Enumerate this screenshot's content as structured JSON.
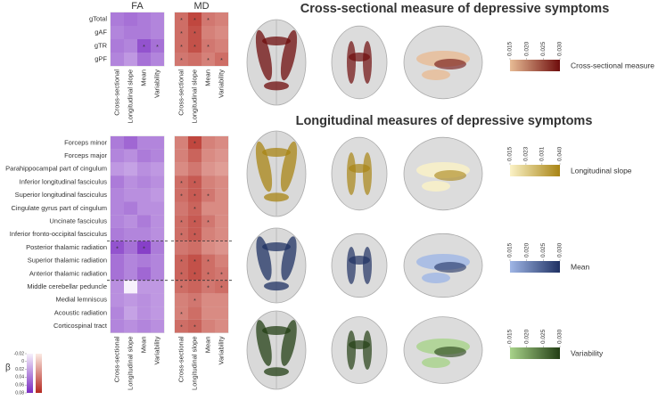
{
  "chart_data": [
    {
      "type": "heatmap",
      "title": "FA",
      "rows": [
        "gTotal",
        "gAF",
        "gTR",
        "gPF"
      ],
      "columns": [
        "Cross-sectional",
        "Longitudinal slope",
        "Mean",
        "Variability"
      ],
      "colors": [
        "#f7f1fc",
        "#7a2cc2"
      ],
      "values": [
        [
          0.04,
          0.045,
          0.04,
          0.035
        ],
        [
          0.035,
          0.04,
          0.04,
          0.035
        ],
        [
          0.04,
          0.035,
          0.06,
          0.045
        ],
        [
          0.035,
          0.025,
          0.045,
          0.035
        ]
      ],
      "stars": [
        [
          null,
          null,
          null,
          null
        ],
        [
          null,
          null,
          null,
          null
        ],
        [
          null,
          null,
          "*",
          "*"
        ],
        [
          null,
          null,
          null,
          null
        ]
      ]
    },
    {
      "type": "heatmap",
      "title": "MD",
      "columns": [
        "Cross-sectional",
        "Longitudinal slope",
        "Mean",
        "Variability"
      ],
      "colors": [
        "#fcebe4",
        "#b52a22"
      ],
      "values": [
        [
          0.045,
          0.065,
          0.04,
          0.035
        ],
        [
          0.045,
          0.06,
          0.035,
          0.03
        ],
        [
          0.045,
          0.06,
          0.04,
          0.035
        ],
        [
          0.04,
          0.045,
          0.035,
          0.045
        ]
      ],
      "stars": [
        [
          "*",
          "*",
          "*",
          null
        ],
        [
          "*",
          "*",
          null,
          null
        ],
        [
          "*",
          "*",
          "*",
          null
        ],
        [
          "*",
          null,
          "*",
          "*"
        ]
      ]
    },
    {
      "type": "heatmap",
      "rows": [
        "Forceps minor",
        "Forceps major",
        "Parahippocampal part of cingulum",
        "Inferior longitudinal fasciculus",
        "Superior longitudinal fasciculus",
        "Cingulate gyrus part of cingulum",
        "Uncinate fasciculus",
        "Inferior fronto-occipital fasciculus",
        "Posterior thalamic radiation",
        "Superior thalamic radiation",
        "Anterior thalamic radiation",
        "Middle cerebellar peduncle",
        "Medial lemniscus",
        "Acoustic radiation",
        "Corticospinal tract"
      ],
      "columns": [
        "Cross-sectional",
        "Longitudinal slope",
        "Mean",
        "Variability"
      ],
      "colors": [
        "#f7f1fc",
        "#7a2cc2"
      ],
      "values": [
        [
          0.04,
          0.05,
          0.035,
          0.035
        ],
        [
          0.035,
          0.03,
          0.04,
          0.035
        ],
        [
          0.025,
          0.02,
          0.03,
          0.025
        ],
        [
          0.04,
          0.03,
          0.035,
          0.03
        ],
        [
          0.035,
          0.03,
          0.03,
          0.025
        ],
        [
          0.035,
          0.04,
          0.03,
          0.03
        ],
        [
          0.035,
          0.03,
          0.04,
          0.03
        ],
        [
          0.04,
          0.035,
          0.035,
          0.03
        ],
        [
          0.06,
          0.045,
          0.07,
          0.04
        ],
        [
          0.045,
          0.035,
          0.04,
          0.035
        ],
        [
          0.045,
          0.035,
          0.05,
          0.035
        ],
        [
          0.03,
          -0.02,
          0.025,
          0.025
        ],
        [
          0.03,
          0.025,
          0.03,
          0.025
        ],
        [
          0.035,
          0.02,
          0.03,
          0.025
        ],
        [
          0.035,
          0.03,
          0.035,
          0.03
        ]
      ],
      "stars": [
        [
          null,
          null,
          null,
          null
        ],
        [
          null,
          null,
          null,
          null
        ],
        [
          null,
          null,
          null,
          null
        ],
        [
          null,
          null,
          null,
          null
        ],
        [
          null,
          null,
          null,
          null
        ],
        [
          null,
          null,
          null,
          null
        ],
        [
          null,
          null,
          null,
          null
        ],
        [
          null,
          null,
          null,
          null
        ],
        [
          "*",
          null,
          "*",
          null
        ],
        [
          null,
          null,
          null,
          null
        ],
        [
          null,
          null,
          null,
          null
        ],
        [
          null,
          null,
          null,
          null
        ],
        [
          null,
          null,
          null,
          null
        ],
        [
          null,
          null,
          null,
          null
        ],
        [
          null,
          null,
          null,
          null
        ]
      ]
    },
    {
      "type": "heatmap",
      "columns": [
        "Cross-sectional",
        "Longitudinal slope",
        "Mean",
        "Variability"
      ],
      "colors": [
        "#fcebe4",
        "#b52a22"
      ],
      "values": [
        [
          0.035,
          0.065,
          0.035,
          0.03
        ],
        [
          0.035,
          0.05,
          0.03,
          0.025
        ],
        [
          0.03,
          0.04,
          0.025,
          0.02
        ],
        [
          0.045,
          0.055,
          0.035,
          0.03
        ],
        [
          0.045,
          0.055,
          0.04,
          0.03
        ],
        [
          0.04,
          0.05,
          0.03,
          0.03
        ],
        [
          0.045,
          0.055,
          0.04,
          0.03
        ],
        [
          0.045,
          0.055,
          0.035,
          0.03
        ],
        [
          0.04,
          0.045,
          0.03,
          0.025
        ],
        [
          0.05,
          0.06,
          0.045,
          0.035
        ],
        [
          0.05,
          0.06,
          0.045,
          0.04
        ],
        [
          0.045,
          0.05,
          0.04,
          0.045
        ],
        [
          0.035,
          0.04,
          0.03,
          0.03
        ],
        [
          0.035,
          0.045,
          0.03,
          0.03
        ],
        [
          0.045,
          0.05,
          0.035,
          0.03
        ]
      ],
      "stars": [
        [
          null,
          "*",
          null,
          null
        ],
        [
          null,
          null,
          null,
          null
        ],
        [
          null,
          null,
          null,
          null
        ],
        [
          "*",
          "*",
          null,
          null
        ],
        [
          "*",
          "*",
          "*",
          null
        ],
        [
          null,
          "*",
          null,
          null
        ],
        [
          "*",
          "*",
          "*",
          null
        ],
        [
          "*",
          "*",
          null,
          null
        ],
        [
          null,
          null,
          null,
          null
        ],
        [
          "*",
          "*",
          "*",
          null
        ],
        [
          "*",
          "*",
          "*",
          "*"
        ],
        [
          "*",
          null,
          "*",
          "*"
        ],
        [
          null,
          "*",
          null,
          null
        ],
        [
          "*",
          null,
          null,
          null
        ],
        [
          "*",
          "*",
          null,
          null
        ]
      ]
    }
  ],
  "beta_legend": {
    "title": "β",
    "lim": [
      -0.02,
      0.08
    ],
    "ticks": [
      -0.02,
      0,
      0.02,
      0.04,
      0.06,
      0.08
    ]
  },
  "figure": {
    "titles": [
      "Cross-sectional measure of depressive symptoms",
      "Longitudinal measures of depressive symptoms"
    ],
    "legends": [
      {
        "label": "Cross-sectional measure",
        "colors": [
          "#e8bc95",
          "#6e0c0c"
        ],
        "ticks": [
          0.015,
          {
            "value": 0.02,
            "label": "0.020"
          },
          0.025,
          {
            "value": 0.03,
            "label": "0.030"
          }
        ]
      },
      {
        "label": "Longitudinal slope",
        "colors": [
          "#fbf2c6",
          "#a88414"
        ],
        "ticks": [
          0.015,
          0.023,
          0.031,
          {
            "value": 0.04,
            "label": "0.040"
          }
        ]
      },
      {
        "label": "Mean",
        "colors": [
          "#9fb6e6",
          "#1f3163"
        ],
        "ticks": [
          0.015,
          {
            "value": 0.02,
            "label": "0.020"
          },
          0.025,
          {
            "value": 0.03,
            "label": "0.030"
          }
        ]
      },
      {
        "label": "Variability",
        "colors": [
          "#a8d38a",
          "#233f14"
        ],
        "ticks": [
          0.015,
          {
            "value": 0.02,
            "label": "0.020"
          },
          0.025,
          {
            "value": 0.03,
            "label": "0.030"
          }
        ]
      }
    ]
  }
}
